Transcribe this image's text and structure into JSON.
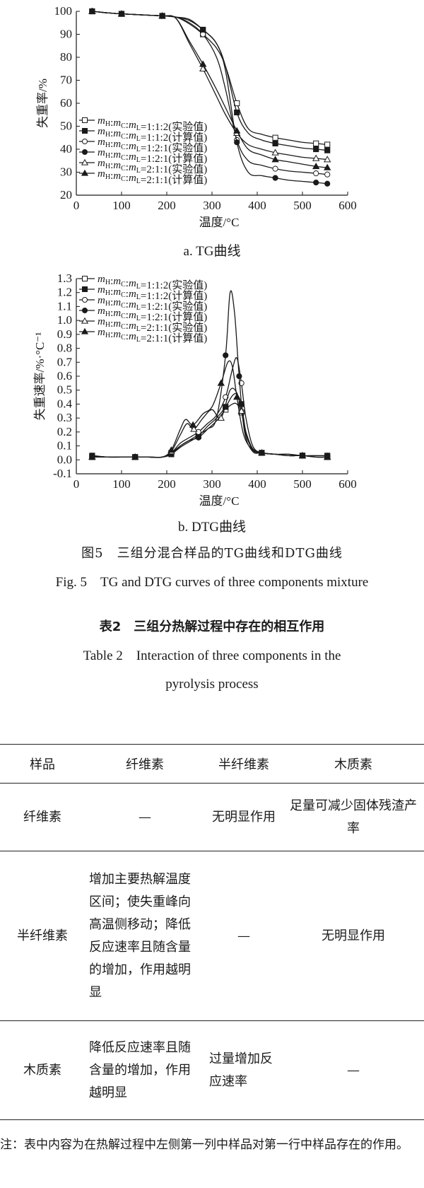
{
  "chart_data": [
    {
      "type": "line",
      "subtitle": "a. TG曲线",
      "xlabel": "温度/°C",
      "ylabel": "失重率/%",
      "xlim": [
        0,
        600
      ],
      "ylim": [
        20,
        100
      ],
      "xticks": [
        0,
        100,
        200,
        300,
        400,
        500,
        600
      ],
      "yticks": [
        20,
        30,
        40,
        50,
        60,
        70,
        80,
        90,
        100
      ],
      "legend_position": "middle-left",
      "series": [
        {
          "name": "1:1:2(实验值)",
          "marker": "open-square",
          "x": [
            35,
            45,
            70,
            100,
            130,
            160,
            190,
            220,
            250,
            280,
            310,
            330,
            355,
            380,
            410,
            440,
            470,
            500,
            530,
            555
          ],
          "y": [
            100,
            99.8,
            99.3,
            98.9,
            98.6,
            98.3,
            98.0,
            97.5,
            94.5,
            90,
            84,
            76,
            60,
            49,
            46.5,
            45,
            44,
            43,
            42.5,
            42
          ]
        },
        {
          "name": "1:1:2(计算值)",
          "marker": "filled-square",
          "x": [
            35,
            45,
            70,
            100,
            130,
            160,
            190,
            220,
            250,
            280,
            310,
            330,
            355,
            380,
            410,
            440,
            470,
            500,
            530,
            555
          ],
          "y": [
            100,
            99.8,
            99.3,
            98.9,
            98.6,
            98.3,
            98.0,
            97.5,
            96,
            92,
            86,
            76,
            56,
            47,
            44,
            42.5,
            41.5,
            40.5,
            40,
            39.5
          ]
        },
        {
          "name": "1:2:1(实验值)",
          "marker": "open-circle",
          "x": [
            35,
            45,
            70,
            100,
            130,
            160,
            190,
            220,
            250,
            280,
            310,
            330,
            355,
            380,
            410,
            440,
            470,
            500,
            530,
            555
          ],
          "y": [
            100,
            99.8,
            99.3,
            98.9,
            98.6,
            98.3,
            98.0,
            97.5,
            95,
            90,
            80,
            66,
            44,
            35,
            33,
            31.5,
            30.5,
            30,
            29.5,
            29
          ]
        },
        {
          "name": "1:2:1(计算值)",
          "marker": "filled-circle",
          "x": [
            35,
            45,
            70,
            100,
            130,
            160,
            190,
            220,
            250,
            280,
            310,
            330,
            355,
            380,
            410,
            440,
            470,
            500,
            530,
            555
          ],
          "y": [
            100,
            99.8,
            99.3,
            98.9,
            98.6,
            98.3,
            98.0,
            97.5,
            96.5,
            92,
            86,
            74,
            43,
            30,
            28.5,
            27.5,
            26.5,
            26,
            25.5,
            25
          ]
        },
        {
          "name": "2:1:1(实验值)",
          "marker": "open-triangle",
          "x": [
            35,
            45,
            70,
            100,
            130,
            160,
            190,
            220,
            250,
            280,
            310,
            330,
            355,
            380,
            410,
            440,
            470,
            500,
            530,
            555
          ],
          "y": [
            100,
            99.8,
            99.3,
            98.9,
            98.6,
            98.3,
            98.0,
            97.0,
            86,
            75,
            63,
            55,
            47,
            42,
            40,
            38.5,
            37.5,
            36.5,
            36,
            35.5
          ]
        },
        {
          "name": "2:1:1(计算值)",
          "marker": "filled-triangle",
          "x": [
            35,
            45,
            70,
            100,
            130,
            160,
            190,
            220,
            250,
            280,
            310,
            330,
            355,
            380,
            410,
            440,
            470,
            500,
            530,
            555
          ],
          "y": [
            100,
            99.8,
            99.3,
            98.9,
            98.6,
            98.3,
            98.0,
            97.0,
            87,
            77,
            66,
            58,
            48,
            40,
            37.5,
            35.5,
            34.5,
            33.5,
            32.5,
            32
          ]
        }
      ]
    },
    {
      "type": "line",
      "subtitle": "b. DTG曲线",
      "xlabel": "温度/°C",
      "ylabel": "失重速率/%·°C⁻¹",
      "xlim": [
        0,
        600
      ],
      "ylim": [
        -0.1,
        1.3
      ],
      "xticks": [
        0,
        100,
        200,
        300,
        400,
        500,
        600
      ],
      "yticks": [
        -0.1,
        0.0,
        0.1,
        0.2,
        0.3,
        0.4,
        0.5,
        0.6,
        0.7,
        0.8,
        0.9,
        1.0,
        1.1,
        1.2,
        1.3
      ],
      "legend_position": "top-left",
      "series": [
        {
          "name": "1:1:2(实验值)",
          "marker": "open-square",
          "x": [
            35,
            70,
            100,
            130,
            160,
            190,
            210,
            230,
            250,
            270,
            290,
            310,
            330,
            345,
            355,
            365,
            375,
            390,
            410,
            440,
            470,
            500,
            530,
            555
          ],
          "y": [
            0.02,
            0.02,
            0.02,
            0.02,
            0.02,
            0.02,
            0.05,
            0.1,
            0.14,
            0.18,
            0.22,
            0.28,
            0.36,
            0.4,
            0.4,
            0.34,
            0.2,
            0.08,
            0.05,
            0.04,
            0.03,
            0.03,
            0.02,
            0.02
          ]
        },
        {
          "name": "1:1:2(计算值)",
          "marker": "filled-square",
          "x": [
            35,
            70,
            100,
            130,
            160,
            190,
            210,
            230,
            250,
            270,
            290,
            310,
            330,
            345,
            355,
            365,
            375,
            390,
            410,
            440,
            470,
            500,
            530,
            555
          ],
          "y": [
            0.03,
            0.02,
            0.02,
            0.02,
            0.02,
            0.02,
            0.04,
            0.09,
            0.13,
            0.17,
            0.24,
            0.3,
            0.38,
            0.46,
            0.47,
            0.4,
            0.2,
            0.07,
            0.05,
            0.04,
            0.04,
            0.03,
            0.03,
            0.03
          ]
        },
        {
          "name": "1:2:1(实验值)",
          "marker": "open-circle",
          "x": [
            35,
            70,
            100,
            130,
            160,
            190,
            210,
            230,
            250,
            270,
            290,
            310,
            330,
            345,
            355,
            365,
            375,
            390,
            410,
            440,
            470,
            500,
            530,
            555
          ],
          "y": [
            0.02,
            0.02,
            0.02,
            0.02,
            0.02,
            0.02,
            0.05,
            0.12,
            0.16,
            0.2,
            0.26,
            0.32,
            0.45,
            0.65,
            0.73,
            0.55,
            0.3,
            0.1,
            0.05,
            0.04,
            0.03,
            0.03,
            0.02,
            0.02
          ]
        },
        {
          "name": "1:2:1(计算值)",
          "marker": "filled-circle",
          "x": [
            35,
            70,
            100,
            130,
            160,
            190,
            210,
            230,
            250,
            270,
            290,
            310,
            330,
            340,
            350,
            360,
            372,
            390,
            410,
            440,
            470,
            500,
            530,
            555
          ],
          "y": [
            0.03,
            0.02,
            0.02,
            0.02,
            0.02,
            0.02,
            0.04,
            0.1,
            0.14,
            0.16,
            0.22,
            0.3,
            0.75,
            1.2,
            1.05,
            0.6,
            0.2,
            0.06,
            0.05,
            0.04,
            0.04,
            0.03,
            0.03,
            0.03
          ]
        },
        {
          "name": "2:1:1(实验值)",
          "marker": "open-triangle",
          "x": [
            35,
            70,
            100,
            130,
            160,
            190,
            210,
            230,
            245,
            260,
            280,
            300,
            320,
            340,
            355,
            365,
            375,
            390,
            410,
            440,
            470,
            500,
            530,
            555
          ],
          "y": [
            0.02,
            0.02,
            0.02,
            0.02,
            0.02,
            0.02,
            0.06,
            0.18,
            0.26,
            0.22,
            0.3,
            0.36,
            0.3,
            0.5,
            0.48,
            0.35,
            0.18,
            0.08,
            0.05,
            0.04,
            0.03,
            0.03,
            0.02,
            0.02
          ]
        },
        {
          "name": "2:1:1(计算值)",
          "marker": "filled-triangle",
          "x": [
            35,
            70,
            100,
            130,
            160,
            190,
            210,
            230,
            242,
            258,
            280,
            300,
            320,
            335,
            345,
            355,
            370,
            390,
            410,
            440,
            470,
            500,
            530,
            555
          ],
          "y": [
            0.02,
            0.02,
            0.02,
            0.02,
            0.02,
            0.02,
            0.07,
            0.22,
            0.29,
            0.25,
            0.33,
            0.38,
            0.55,
            0.7,
            0.67,
            0.45,
            0.18,
            0.07,
            0.05,
            0.04,
            0.03,
            0.03,
            0.02,
            0.02
          ]
        }
      ]
    }
  ],
  "figure": {
    "caption_cn": "图5　三组分混合样品的TG曲线和DTG曲线",
    "caption_en": "Fig. 5　TG and DTG curves of three components mixture"
  },
  "table": {
    "title_cn": "表2　三组分热解过程中存在的相互作用",
    "title_en_line1": "Table 2　Interaction of three components in the",
    "title_en_line2": "pyrolysis process",
    "headers": [
      "样品",
      "纤维素",
      "半纤维素",
      "木质素"
    ],
    "rows": [
      [
        "纤维素",
        "—",
        "无明显作用",
        "足量可减少固体残渣产率"
      ],
      [
        "半纤维素",
        "增加主要热解温度区间；使失重峰向高温侧移动；降低反应速率且随含量的增加，作用越明显",
        "—",
        "无明显作用"
      ],
      [
        "木质素",
        "降低反应速率且随含量的增加，作用越明显",
        "过量增加反应速率",
        "—"
      ]
    ],
    "note": "注：表中内容为在热解过程中左侧第一列中样品对第一行中样品存在的作用。"
  }
}
